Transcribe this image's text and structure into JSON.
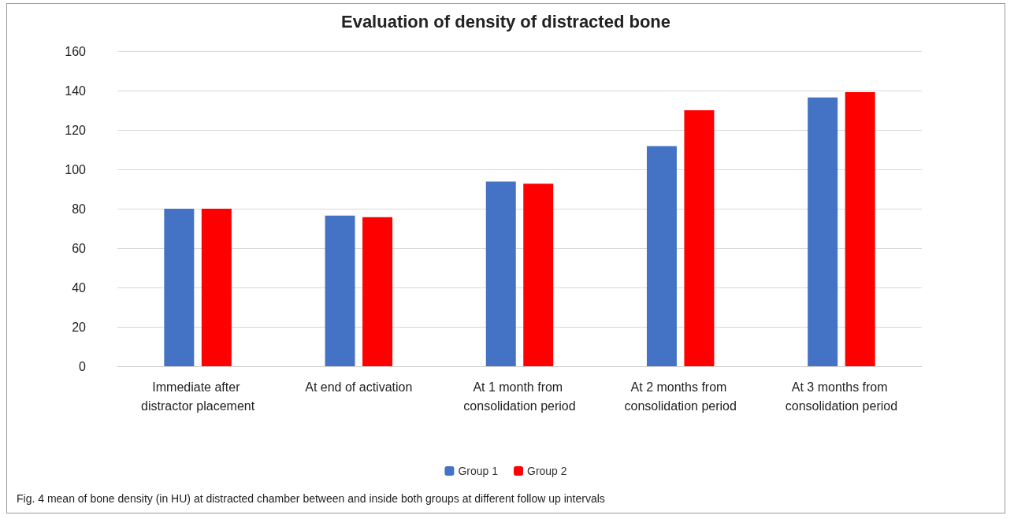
{
  "chart_data": {
    "type": "bar",
    "title": "Evaluation of density of distracted bone",
    "categories": [
      "Immediate after distractor placement",
      "At end of activation",
      "At 1 month from consolidation period",
      "At 2 months from consolidation period",
      "At 3 months from consolidation period"
    ],
    "series": [
      {
        "name": "Group 1",
        "color": "#4472c4",
        "values": [
          80,
          76.5,
          93.8,
          111.8,
          136.5
        ]
      },
      {
        "name": "Group 2",
        "color": "#ff0000",
        "values": [
          80,
          75.7,
          92.7,
          130,
          139.2
        ]
      }
    ],
    "ylim": [
      0,
      160
    ],
    "yticks": [
      0,
      20,
      40,
      60,
      80,
      100,
      120,
      140,
      160
    ],
    "grid": "y",
    "legend": "bottom",
    "annotations": [
      "Fig. 4 mean of bone density (in HU) at distracted chamber between and inside both groups at different follow up intervals"
    ]
  }
}
